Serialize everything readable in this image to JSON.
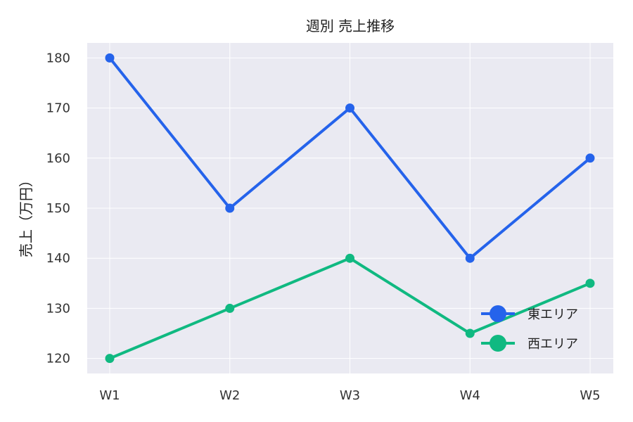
{
  "chart_data": {
    "type": "line",
    "title": "週別 売上推移",
    "xlabel": "",
    "ylabel": "売上（万円）",
    "categories": [
      "W1",
      "W2",
      "W3",
      "W4",
      "W5"
    ],
    "ylim": [
      117,
      183
    ],
    "yticks": [
      120,
      130,
      140,
      150,
      160,
      170,
      180
    ],
    "grid": true,
    "legend_position": "lower-right",
    "background": "#eaeaf2",
    "series": [
      {
        "name": "東エリア",
        "values": [
          180,
          150,
          170,
          140,
          160
        ],
        "color": "#2563eb"
      },
      {
        "name": "西エリア",
        "values": [
          120,
          130,
          140,
          125,
          135
        ],
        "color": "#10b981"
      }
    ]
  }
}
